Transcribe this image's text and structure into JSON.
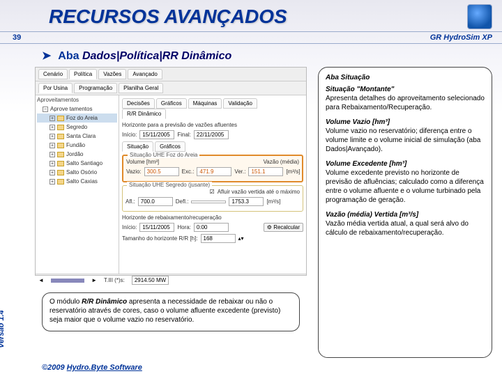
{
  "header": {
    "title": "RECURSOS AVANÇADOS",
    "page_number": "39",
    "app_name": "GR HydroSim XP"
  },
  "section": {
    "arrow": "➤",
    "prefix": "Aba",
    "path": "Dados|Política|RR Dinâmico"
  },
  "screenshot": {
    "tabs_main": [
      "Cenário",
      "Política",
      "Vazões",
      "Avançado"
    ],
    "tabs_main_active": 1,
    "subtabs": [
      "Por Usina",
      "Programação",
      "Planilha Geral"
    ],
    "subtabs_active": 0,
    "tree_header": "Aproveitamentos",
    "tree_root": "Aprove tamentos",
    "tree_items": [
      "Foz do Areia",
      "Segredo",
      "Santa Clara",
      "Fundão",
      "Jordão",
      "Salto Santiago",
      "Salto Osório",
      "Salto Caxias"
    ],
    "tree_selected": 0,
    "right_tabs": [
      "Decisões",
      "Gráficos",
      "Máquinas",
      "Validação",
      "R/R Dinâmico"
    ],
    "right_tabs_active": 4,
    "horizonte_label": "Horizonte para a previsão de vazões afluentes",
    "inicio_label": "Início:",
    "inicio_value": "15/11/2005",
    "final_label": "Final:",
    "final_value": "22/11/2005",
    "inner_tabs": [
      "Situação",
      "Gráficos"
    ],
    "inner_tabs_active": 0,
    "g1_title": "Situação UHE Foz do Areia",
    "volume_label": "Volume [hm³]",
    "vazao_media_label": "Vazão (média)",
    "vazio_label": "Vazio:",
    "vazio_value": "300.5",
    "exc_label": "Exc.:",
    "exc_value": "471.9",
    "ver_label": "Ver.:",
    "ver_value": "151.1",
    "ver_unit": "[m³/s]",
    "g2_title": "Situação UHE Segredo (jusante)",
    "g2_hint": "Afluir vazão vertida até o máximo",
    "afl_label": "Afl.:",
    "afl_value": "700.0",
    "defl_label": "Defl.:",
    "defl_value": "",
    "g2_last": "1753.3",
    "g2_unit": "[m³/s]",
    "hz_label": "Horizonte de rebaixamento/recuperação",
    "hz_inicio_label": "Início:",
    "hz_inicio_value": "15/11/2005",
    "hora_label": "Hora:",
    "hora_value": "0:00",
    "recalc_btn": "Recalcular",
    "tam_label": "Tamanho do horizonte R/R [h]:",
    "tam_value": "168",
    "bottom_left_label": "T.III (*)s:",
    "bottom_left_value": "2914.50 MW"
  },
  "side": {
    "h1": "Aba Situação",
    "p1_title": "Situação \"Montante\"",
    "p1_body": "Apresenta detalhes do aproveitamento selecionado para Rebaixamento/Recuperação.",
    "p2_title": "Volume Vazio [hm³]",
    "p2_body": "Volume vazio no reservatório; diferença entre o volume limite e o volume inicial de simulação (aba Dados|Avançado).",
    "p3_title": "Volume Excedente [hm³]",
    "p3_body": "Volume excedente previsto no horizonte de previsão de afluências; calculado como a diferença entre o volume afluente e o volume turbinado pela programação de geração.",
    "p4_title": "Vazão (média) Vertida [m³/s]",
    "p4_body": "Vazão média vertida atual, a qual será alvo do cálculo de rebaixamento/recuperação."
  },
  "bottom_note": {
    "text1": "O módulo ",
    "bold": "R/R Dinâmico",
    "text2": " apresenta a necessidade de rebaixar ou não o reservatório através de cores, caso o volume afluente excedente (previsto) seja maior que o volume vazio no reservatório."
  },
  "footer": {
    "version": "Versão 1.4",
    "copyright_prefix": "©2009 ",
    "copyright_brand": "Hydro.Byte Software"
  }
}
